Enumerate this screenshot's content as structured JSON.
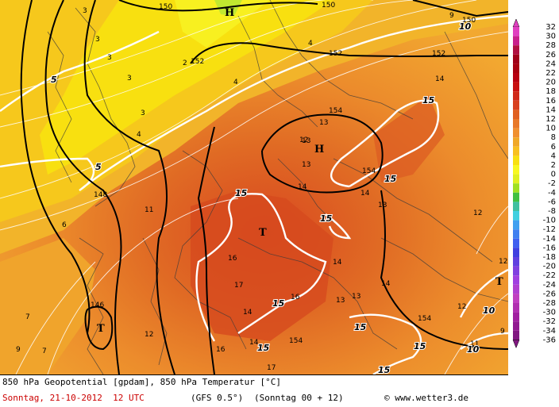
{
  "footer": {
    "title": "850 hPa Geopotential [gpdam], 850 hPa Temperatur [°C]",
    "date": "Sonntag, 21-10-2012  12 UTC",
    "model": "(GFS 0.5°)",
    "run": "(Sonntag 00 + 12)",
    "copyright": "© www.wetter3.de"
  },
  "colorscale": {
    "labels": [
      "32",
      "30",
      "28",
      "26",
      "24",
      "22",
      "20",
      "18",
      "16",
      "14",
      "12",
      "10",
      "8",
      "6",
      "4",
      "2",
      "0",
      "-2",
      "-4",
      "-6",
      "-8",
      "-10",
      "-12",
      "-14",
      "-16",
      "-18",
      "-20",
      "-22",
      "-24",
      "-26",
      "-28",
      "-30",
      "-32",
      "-34",
      "-36"
    ],
    "colors": [
      "#e040c0",
      "#c8208c",
      "#b01040",
      "#a00018",
      "#a80010",
      "#b80010",
      "#c81010",
      "#d02818",
      "#d84020",
      "#e06020",
      "#e87828",
      "#f09030",
      "#f0a828",
      "#f8c020",
      "#f8e010",
      "#f8f820",
      "#e0f020",
      "#a0e020",
      "#40c040",
      "#40c0a0",
      "#40d0e0",
      "#40a0f0",
      "#4080f0",
      "#4060f0",
      "#4040e0",
      "#6040e0",
      "#8040e0",
      "#a040e0",
      "#b040d0",
      "#c040c0",
      "#b030b0",
      "#a020a0",
      "#901890",
      "#801880"
    ]
  },
  "map": {
    "geopotential_labels": [
      {
        "text": "150"
      },
      {
        "text": "150"
      },
      {
        "text": "150"
      },
      {
        "text": "152"
      },
      {
        "text": "152"
      },
      {
        "text": "152"
      },
      {
        "text": "154"
      },
      {
        "text": "154"
      },
      {
        "text": "154"
      },
      {
        "text": "148"
      },
      {
        "text": "146"
      },
      {
        "text": "154"
      }
    ],
    "temperature_labels": [
      {
        "text": "3"
      },
      {
        "text": "3"
      },
      {
        "text": "3"
      },
      {
        "text": "3"
      },
      {
        "text": "3"
      },
      {
        "text": "4"
      },
      {
        "text": "4"
      },
      {
        "text": "4"
      },
      {
        "text": "2"
      },
      {
        "text": "9"
      },
      {
        "text": "12"
      },
      {
        "text": "13"
      },
      {
        "text": "14"
      },
      {
        "text": "14"
      },
      {
        "text": "14"
      },
      {
        "text": "13"
      },
      {
        "text": "12"
      },
      {
        "text": "11"
      },
      {
        "text": "6"
      },
      {
        "text": "16"
      },
      {
        "text": "17"
      },
      {
        "text": "14"
      },
      {
        "text": "13"
      },
      {
        "text": "13"
      },
      {
        "text": "14"
      },
      {
        "text": "12"
      },
      {
        "text": "16"
      },
      {
        "text": "14"
      },
      {
        "text": "17"
      },
      {
        "text": "7"
      },
      {
        "text": "9"
      },
      {
        "text": "7"
      },
      {
        "text": "12"
      },
      {
        "text": "11"
      },
      {
        "text": "12"
      },
      {
        "text": "9"
      },
      {
        "text": "14"
      },
      {
        "text": "13"
      },
      {
        "text": "13"
      },
      {
        "text": "16"
      }
    ],
    "isotherm_labels": [
      {
        "text": "5"
      },
      {
        "text": "5"
      },
      {
        "text": "15"
      },
      {
        "text": "15"
      },
      {
        "text": "15"
      },
      {
        "text": "15"
      },
      {
        "text": "15"
      },
      {
        "text": "15"
      },
      {
        "text": "15"
      },
      {
        "text": "15"
      },
      {
        "text": "10"
      },
      {
        "text": "10"
      },
      {
        "text": "10"
      },
      {
        "text": "15"
      }
    ],
    "high_symbols": [
      {
        "text": "H"
      },
      {
        "text": "H"
      }
    ],
    "low_symbols": [
      {
        "text": "T"
      },
      {
        "text": "T"
      },
      {
        "text": "T"
      }
    ]
  }
}
